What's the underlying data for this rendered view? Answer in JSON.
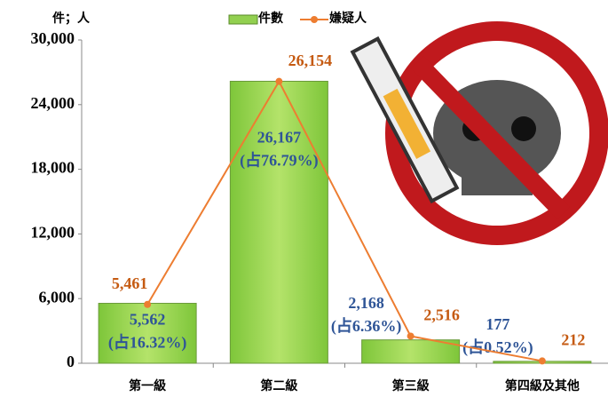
{
  "chart_data": {
    "type": "bar",
    "unit_label": "件；人",
    "categories": [
      "第一級",
      "第二級",
      "第三級",
      "第四級及其他"
    ],
    "series": [
      {
        "name": "件數",
        "type": "bar",
        "color": "#92d050",
        "values": [
          5562,
          26167,
          2168,
          177
        ],
        "value_labels": [
          "5,562",
          "26,167",
          "2,168",
          "177"
        ],
        "shares": [
          "(占16.32%)",
          "(占76.79%)",
          "(占6.36%)",
          "(占0.52%)"
        ]
      },
      {
        "name": "嫌疑人",
        "type": "line",
        "color": "#ed7d31",
        "values": [
          5461,
          26154,
          2516,
          212
        ],
        "value_labels": [
          "5,461",
          "26,154",
          "2,516",
          "212"
        ]
      }
    ],
    "ylim": [
      0,
      30000
    ],
    "yticks": [
      0,
      {
        "value": 6000,
        "label": "6,000"
      },
      {
        "value": 12000,
        "label": "12,000"
      },
      {
        "value": 18000,
        "label": "18,000"
      },
      {
        "value": 24000,
        "label": "24,000"
      },
      {
        "value": 30000,
        "label": "30,000"
      }
    ]
  }
}
